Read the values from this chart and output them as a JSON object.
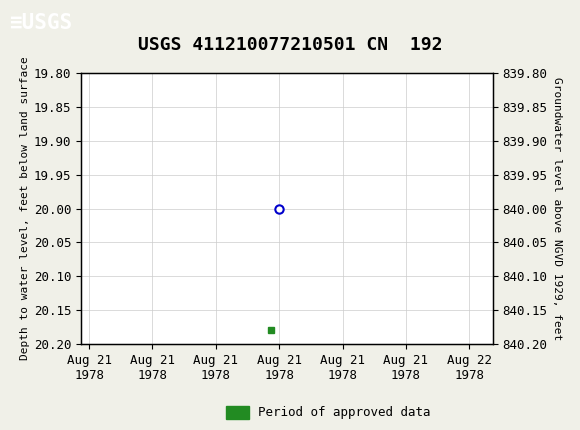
{
  "title": "USGS 411210077210501 CN  192",
  "header_color": "#1a6b3a",
  "left_ylabel": "Depth to water level, feet below land surface",
  "right_ylabel": "Groundwater level above NGVD 1929, feet",
  "left_ylim": [
    19.8,
    20.2
  ],
  "right_ylim": [
    839.8,
    840.2
  ],
  "left_yticks": [
    19.8,
    19.85,
    19.9,
    19.95,
    20.0,
    20.05,
    20.1,
    20.15,
    20.2
  ],
  "right_yticks": [
    839.8,
    839.85,
    839.9,
    839.95,
    840.0,
    840.05,
    840.1,
    840.15,
    840.2
  ],
  "left_ytick_labels": [
    "19.80",
    "19.85",
    "19.90",
    "19.95",
    "20.00",
    "20.05",
    "20.10",
    "20.15",
    "20.20"
  ],
  "right_ytick_labels": [
    "839.80",
    "839.85",
    "839.90",
    "839.95",
    "840.00",
    "840.05",
    "840.10",
    "840.15",
    "840.20"
  ],
  "point_depth": 20.0,
  "green_point_depth": 20.18,
  "point_color": "#0000cc",
  "green_color": "#228B22",
  "background_color": "#f0f0e8",
  "plot_bg_color": "#ffffff",
  "grid_color": "#cccccc",
  "legend_label": "Period of approved data",
  "font_family": "monospace",
  "title_fontsize": 13,
  "tick_fontsize": 9,
  "ylabel_fontsize": 8,
  "xtick_labels": [
    "Aug 21\n1978",
    "Aug 21\n1978",
    "Aug 21\n1978",
    "Aug 21\n1978",
    "Aug 21\n1978",
    "Aug 21\n1978",
    "Aug 22\n1978"
  ]
}
